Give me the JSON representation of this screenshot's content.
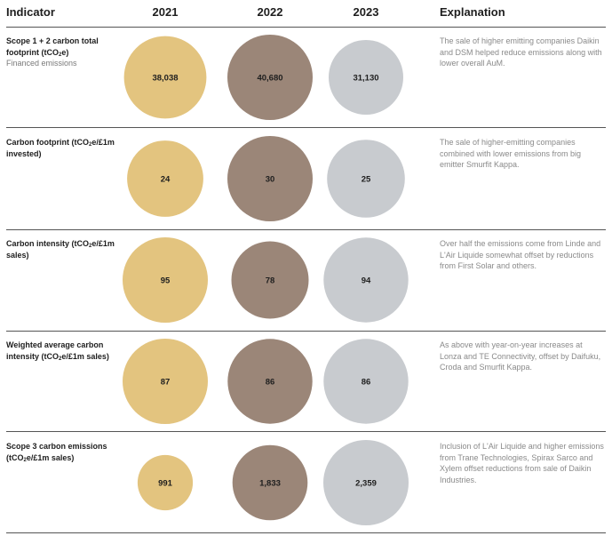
{
  "chart_data": {
    "type": "bubble-table",
    "headers": {
      "indicator": "Indicator",
      "years": [
        "2021",
        "2022",
        "2023"
      ],
      "explanation": "Explanation"
    },
    "colors": {
      "2021": "#e3c47f",
      "2022": "#9b8678",
      "2023": "#c8cbcf"
    },
    "rows": [
      {
        "title_parts": [
          "Scope 1 + 2 carbon total footprint (tCO",
          "2",
          "e)"
        ],
        "subtitle": "Financed emissions",
        "values": [
          38038,
          40680,
          31130
        ],
        "labels": [
          "38,038",
          "40,680",
          "31,130"
        ],
        "explanation": "The sale of higher emitting companies Daikin and DSM helped reduce emissions along with lower overall AuM."
      },
      {
        "title_parts": [
          "Carbon footprint (tCO",
          "2",
          "e/£1m invested)"
        ],
        "subtitle": "",
        "values": [
          24,
          30,
          25
        ],
        "labels": [
          "24",
          "30",
          "25"
        ],
        "explanation": "The sale of higher-emitting companies combined with lower emissions from big emitter Smurfit Kappa."
      },
      {
        "title_parts": [
          "Carbon intensity (tCO",
          "2",
          "e/£1m sales)"
        ],
        "subtitle": "",
        "values": [
          95,
          78,
          94
        ],
        "labels": [
          "95",
          "78",
          "94"
        ],
        "explanation": "Over half the emissions come from Linde and L'Air Liquide somewhat offset by reductions from First Solar and others."
      },
      {
        "title_parts": [
          "Weighted average carbon intensity (tCO",
          "2",
          "e/£1m sales)"
        ],
        "subtitle": "",
        "values": [
          87,
          86,
          86
        ],
        "labels": [
          "87",
          "86",
          "86"
        ],
        "explanation": "As above with year-on-year increases at Lonza and TE Connectivity, offset by Daifuku, Croda and Smurfit Kappa."
      },
      {
        "title_parts": [
          "Scope 3 carbon emissions (tCO",
          "2",
          "e/£1m sales)"
        ],
        "subtitle": "",
        "values": [
          991,
          1833,
          2359
        ],
        "labels": [
          "991",
          "1,833",
          "2,359"
        ],
        "explanation": "Inclusion of L'Air Liquide and higher emissions from Trane Technologies, Spirax Sarco and Xylem offset reductions from sale of Daikin Industries."
      }
    ]
  }
}
